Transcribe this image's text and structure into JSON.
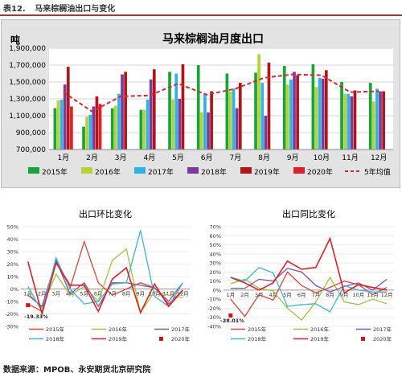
{
  "header": {
    "label": "表12.",
    "title": "马来棕榈油出口与变化"
  },
  "footer": {
    "source": "数据来源：MPOB、永安期货北京研究院"
  },
  "chart_data": [
    {
      "type": "bar",
      "title": "马来棕榈油月度出口",
      "ylabel": "吨",
      "ylim": [
        700000,
        1900000
      ],
      "yticks": [
        700000,
        900000,
        1100000,
        1300000,
        1500000,
        1700000,
        1900000
      ],
      "ytick_labels": [
        "700,000",
        "900,000",
        "1,100,000",
        "1,300,000",
        "1,500,000",
        "1,700,000",
        "1,900,000"
      ],
      "categories": [
        "1月",
        "2月",
        "3月",
        "4月",
        "5月",
        "6月",
        "7月",
        "8月",
        "9月",
        "10月",
        "11月",
        "12月"
      ],
      "grid": true,
      "legend": "bottom",
      "series": [
        {
          "name": "2015年",
          "color": "#1aa338",
          "values": [
            1190000,
            970000,
            1190000,
            1170000,
            1620000,
            1700000,
            1600000,
            1610000,
            1690000,
            1710000,
            1500000,
            1490000
          ]
        },
        {
          "name": "2016年",
          "color": "#b5d334",
          "values": [
            1280000,
            1090000,
            1220000,
            1170000,
            1290000,
            1140000,
            1390000,
            1830000,
            1470000,
            1440000,
            1360000,
            1270000
          ]
        },
        {
          "name": "2017年",
          "color": "#2eb3e8",
          "values": [
            1290000,
            1110000,
            1360000,
            1290000,
            1600000,
            1360000,
            1420000,
            1490000,
            1530000,
            1550000,
            1360000,
            1420000
          ]
        },
        {
          "name": "2018年",
          "color": "#7a3c99",
          "values": [
            1470000,
            1210000,
            1590000,
            1530000,
            1300000,
            1140000,
            1190000,
            1100000,
            1620000,
            1540000,
            1330000,
            1390000
          ]
        },
        {
          "name": "2019年",
          "color": "#b0151c",
          "values": [
            1680000,
            1330000,
            1620000,
            1650000,
            1710000,
            1390000,
            1490000,
            1730000,
            1580000,
            1640000,
            1400000,
            1390000
          ]
        },
        {
          "name": "2020年",
          "color": "#e01f26",
          "values": [
            1210000,
            1240000,
            null,
            null,
            null,
            null,
            null,
            null,
            null,
            null,
            null,
            null
          ]
        }
      ],
      "average_line": {
        "name": "5年均值",
        "color": "#d82a2a",
        "values": [
          1380000,
          1150000,
          1330000,
          1340000,
          1480000,
          1350000,
          1420000,
          1550000,
          1590000,
          1580000,
          1380000,
          1390000
        ]
      }
    },
    {
      "type": "line",
      "title": "出口环比变化",
      "ylim": [
        -30,
        50
      ],
      "yticks": [
        -30,
        -20,
        -10,
        0,
        10,
        20,
        30,
        40,
        50
      ],
      "ytick_labels": [
        "-30%",
        "-20%",
        "-10%",
        "0%",
        "10%",
        "20%",
        "30%",
        "40%",
        "50%"
      ],
      "categories": [
        "1月",
        "2月",
        "3月",
        "4月",
        "5月",
        "6月",
        "7月",
        "8月",
        "9月",
        "10月",
        "11月",
        "12月"
      ],
      "annotation": "-19.33%",
      "legend": "bottom",
      "series": [
        {
          "name": "2015年",
          "color": "#d9453b",
          "values": [
            -12,
            -18,
            22,
            1,
            38,
            5,
            -5,
            0,
            5,
            1,
            -12,
            -1
          ]
        },
        {
          "name": "2016年",
          "color": "#9dc33b",
          "values": [
            -3,
            -15,
            12,
            -5,
            2,
            -10,
            23,
            32,
            -19,
            -2,
            -5,
            -7
          ]
        },
        {
          "name": "2017年",
          "color": "#7f55a6",
          "values": [
            -5,
            -14,
            23,
            -4,
            5,
            -14,
            5,
            5,
            3,
            1,
            -10,
            5
          ]
        },
        {
          "name": "2018年",
          "color": "#3fb3d6",
          "values": [
            2,
            -18,
            25,
            0,
            -12,
            -10,
            4,
            5,
            47,
            -6,
            -14,
            5
          ]
        },
        {
          "name": "2019年",
          "color": "#e01f26",
          "values": [
            22,
            -20,
            21,
            3,
            3,
            -18,
            8,
            17,
            -19,
            4,
            -14,
            -1
          ]
        },
        {
          "name": "2020年",
          "color": "#d0121a",
          "values": [
            -13,
            null,
            null,
            null,
            null,
            null,
            null,
            null,
            null,
            null,
            null,
            null
          ]
        }
      ]
    },
    {
      "type": "line",
      "title": "出口同比变化",
      "ylim": [
        -40,
        70
      ],
      "yticks": [
        -40,
        -30,
        -20,
        -10,
        0,
        10,
        20,
        30,
        40,
        50,
        60,
        70
      ],
      "ytick_labels": [
        "-40%",
        "-30%",
        "-20%",
        "-10%",
        "0%",
        "10%",
        "20%",
        "30%",
        "40%",
        "50%",
        "60%",
        "70%"
      ],
      "categories": [
        "1月",
        "2月",
        "3月",
        "4月",
        "5月",
        "6月",
        "7月",
        "8月",
        "9月",
        "10月",
        "11月",
        "12月"
      ],
      "annotation": "-28.01%",
      "legend": "bottom",
      "series": [
        {
          "name": "2015年",
          "color": "#d9453b",
          "values": [
            -10,
            -29,
            -5,
            -11,
            20,
            5,
            -3,
            3,
            10,
            6,
            -5,
            3
          ]
        },
        {
          "name": "2016年",
          "color": "#9dc33b",
          "values": [
            7,
            12,
            2,
            -1,
            -20,
            -33,
            -13,
            14,
            -13,
            -16,
            -10,
            -15
          ]
        },
        {
          "name": "2017年",
          "color": "#7f55a6",
          "values": [
            2,
            2,
            12,
            10,
            24,
            20,
            5,
            -2,
            4,
            8,
            0,
            12
          ]
        },
        {
          "name": "2018年",
          "color": "#3fb3d6",
          "values": [
            14,
            10,
            25,
            19,
            -18,
            -16,
            -15,
            -24,
            5,
            0,
            -2,
            -2
          ]
        },
        {
          "name": "2019年",
          "color": "#e01f26",
          "values": [
            14,
            8,
            0,
            8,
            32,
            23,
            25,
            57,
            -3,
            6,
            3,
            0
          ]
        },
        {
          "name": "2020年",
          "color": "#d0121a",
          "values": [
            -28,
            null,
            null,
            null,
            null,
            null,
            null,
            null,
            null,
            null,
            null,
            null
          ]
        }
      ]
    }
  ]
}
